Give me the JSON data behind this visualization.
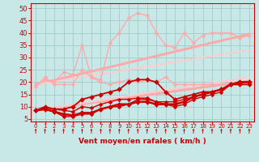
{
  "bg_color": "#c8e8e8",
  "grid_color": "#a0cccc",
  "xlabel": "Vent moyen/en rafales ( km/h )",
  "xlabel_color": "#cc0000",
  "tick_color": "#cc0000",
  "xlim": [
    -0.5,
    23.5
  ],
  "ylim": [
    4,
    52
  ],
  "yticks": [
    5,
    10,
    15,
    20,
    25,
    30,
    35,
    40,
    45,
    50
  ],
  "xticks": [
    0,
    1,
    2,
    3,
    4,
    5,
    6,
    7,
    8,
    9,
    10,
    11,
    12,
    13,
    14,
    15,
    16,
    17,
    18,
    19,
    20,
    21,
    22,
    23
  ],
  "linear_series": [
    {
      "x0": 0,
      "x1": 23,
      "y0": 8.5,
      "y1": 20.5,
      "color": "#ffaaaa",
      "lw": 2.2,
      "zorder": 2
    },
    {
      "x0": 0,
      "x1": 23,
      "y0": 19,
      "y1": 39.5,
      "color": "#ffaaaa",
      "lw": 2.2,
      "zorder": 2
    },
    {
      "x0": 0,
      "x1": 23,
      "y0": 8.5,
      "y1": 22,
      "color": "#ffcccc",
      "lw": 1.5,
      "zorder": 2
    },
    {
      "x0": 0,
      "x1": 23,
      "y0": 19,
      "y1": 33,
      "color": "#ffcccc",
      "lw": 1.5,
      "zorder": 2
    }
  ],
  "data_series": [
    {
      "x": [
        0,
        1,
        2,
        3,
        4,
        5,
        6,
        7,
        8,
        9,
        10,
        11,
        12,
        13,
        14,
        15,
        16,
        17,
        18,
        19,
        20,
        21,
        22,
        23
      ],
      "y": [
        18,
        22,
        19,
        19,
        19,
        25,
        22,
        20,
        19,
        20,
        21,
        20,
        21,
        20,
        22,
        19,
        19,
        19,
        19,
        19,
        19,
        19,
        19,
        19
      ],
      "color": "#ffaaaa",
      "lw": 1.0,
      "ms": 2.5,
      "zorder": 3
    },
    {
      "x": [
        0,
        1,
        2,
        3,
        4,
        5,
        6,
        7,
        8,
        9,
        10,
        11,
        12,
        13,
        14,
        15,
        16,
        17,
        18,
        19,
        20,
        21,
        22,
        23
      ],
      "y": [
        19,
        21,
        20,
        24,
        23,
        35,
        22,
        21,
        36,
        40,
        46,
        48,
        47,
        40,
        35,
        34,
        40,
        36,
        39,
        40,
        40,
        40,
        38,
        39
      ],
      "color": "#ffaaaa",
      "lw": 1.0,
      "ms": 2.5,
      "zorder": 3
    },
    {
      "x": [
        0,
        1,
        2,
        3,
        4,
        5,
        6,
        7,
        8,
        9,
        10,
        11,
        12,
        13,
        14,
        15,
        16,
        17,
        18,
        19,
        20,
        21,
        22,
        23
      ],
      "y": [
        8.5,
        9,
        8,
        7,
        6.5,
        7.5,
        7.5,
        9,
        10,
        11,
        11,
        12,
        12,
        11,
        11,
        11,
        12,
        14,
        15,
        16,
        17,
        19,
        20,
        20
      ],
      "color": "#cc0000",
      "lw": 1.8,
      "ms": 3.0,
      "zorder": 4
    },
    {
      "x": [
        0,
        1,
        2,
        3,
        4,
        5,
        6,
        7,
        8,
        9,
        10,
        11,
        12,
        13,
        14,
        15,
        16,
        17,
        18,
        19,
        20,
        21,
        22,
        23
      ],
      "y": [
        8.5,
        9.5,
        9,
        8.5,
        8,
        10,
        9.5,
        11,
        12,
        13,
        13,
        13.5,
        13.5,
        12,
        12,
        12,
        13,
        14,
        15,
        16,
        17,
        19,
        19.5,
        20
      ],
      "color": "#cc0000",
      "lw": 1.0,
      "ms": 2.5,
      "zorder": 4
    },
    {
      "x": [
        0,
        1,
        2,
        3,
        4,
        5,
        6,
        7,
        8,
        9,
        10,
        11,
        12,
        13,
        14,
        15,
        16,
        17,
        18,
        19,
        20,
        21,
        22,
        23
      ],
      "y": [
        8.5,
        9,
        8,
        6,
        6,
        7,
        7,
        9,
        10,
        10,
        11,
        13,
        13,
        12,
        11,
        10,
        11,
        13,
        14,
        15,
        16,
        19,
        20,
        20
      ],
      "color": "#cc0000",
      "lw": 1.0,
      "ms": 2.5,
      "zorder": 4
    },
    {
      "x": [
        0,
        1,
        2,
        3,
        4,
        5,
        6,
        7,
        8,
        9,
        10,
        11,
        12,
        13,
        14,
        15,
        16,
        17,
        18,
        19,
        20,
        21,
        22,
        23
      ],
      "y": [
        8.5,
        10,
        9,
        9,
        10,
        13,
        14,
        15,
        16,
        17,
        20,
        21,
        21,
        20,
        16,
        13,
        14,
        15,
        16,
        16,
        17,
        19,
        19,
        19
      ],
      "color": "#cc0000",
      "lw": 1.3,
      "ms": 3.0,
      "zorder": 4
    }
  ]
}
